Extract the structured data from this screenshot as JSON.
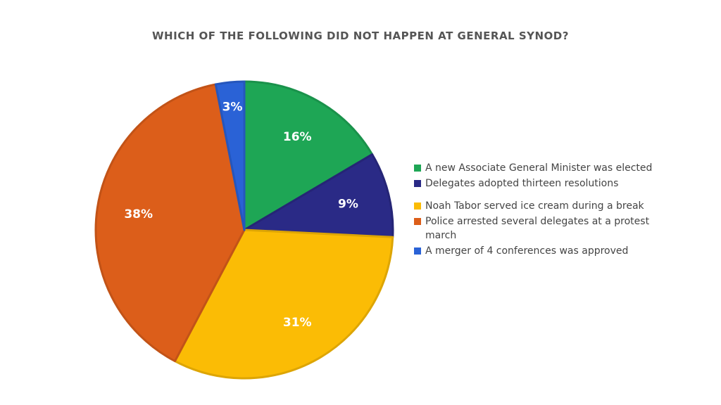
{
  "chart_data": {
    "type": "pie",
    "title": "WHICH OF THE FOLLOWING DID NOT HAPPEN AT GENERAL SYNOD?",
    "legend_position": "right",
    "slices": [
      {
        "label": "A new Associate General Minister was elected",
        "value": 16,
        "display": "16%",
        "color": "#1ea655"
      },
      {
        "label": "Delegates adopted thirteen resolutions",
        "value": 9,
        "display": "9%",
        "color": "#2a2a86"
      },
      {
        "label": "Noah Tabor served ice cream during a break",
        "value": 31,
        "display": "31%",
        "color": "#fbbc05"
      },
      {
        "label": "Police arrested several delegates at a protest march",
        "value": 38,
        "display": "38%",
        "color": "#dc5e1a"
      },
      {
        "label": "A merger of 4 conferences was approved",
        "value": 3,
        "display": "3%",
        "color": "#2a62d6"
      }
    ]
  }
}
